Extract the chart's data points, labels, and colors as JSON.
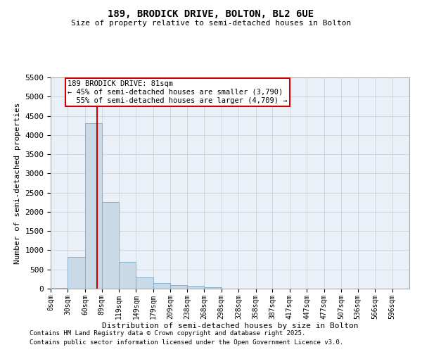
{
  "title_line1": "189, BRODICK DRIVE, BOLTON, BL2 6UE",
  "title_line2": "Size of property relative to semi-detached houses in Bolton",
  "xlabel": "Distribution of semi-detached houses by size in Bolton",
  "ylabel": "Number of semi-detached properties",
  "bin_labels": [
    "0sqm",
    "30sqm",
    "60sqm",
    "89sqm",
    "119sqm",
    "149sqm",
    "179sqm",
    "209sqm",
    "238sqm",
    "268sqm",
    "298sqm",
    "328sqm",
    "358sqm",
    "387sqm",
    "417sqm",
    "447sqm",
    "477sqm",
    "507sqm",
    "536sqm",
    "566sqm",
    "596sqm"
  ],
  "bin_edges": [
    0,
    30,
    60,
    89,
    119,
    149,
    179,
    209,
    238,
    268,
    298,
    328,
    358,
    387,
    417,
    447,
    477,
    507,
    536,
    566,
    596
  ],
  "bar_heights": [
    10,
    820,
    4300,
    2250,
    700,
    300,
    150,
    100,
    70,
    30,
    5,
    0,
    0,
    0,
    0,
    0,
    0,
    0,
    0,
    0
  ],
  "bar_color": "#c9d9e8",
  "bar_edge_color": "#7aaac8",
  "vline_x": 81,
  "vline_color": "#cc0000",
  "annotation_text": "189 BRODICK DRIVE: 81sqm\n← 45% of semi-detached houses are smaller (3,790)\n  55% of semi-detached houses are larger (4,709) →",
  "annotation_box_color": "#ffffff",
  "annotation_box_edge": "#cc0000",
  "ylim": [
    0,
    5500
  ],
  "yticks": [
    0,
    500,
    1000,
    1500,
    2000,
    2500,
    3000,
    3500,
    4000,
    4500,
    5000,
    5500
  ],
  "background_color": "#ffffff",
  "grid_color": "#cccccc",
  "footer_line1": "Contains HM Land Registry data © Crown copyright and database right 2025.",
  "footer_line2": "Contains public sector information licensed under the Open Government Licence v3.0."
}
